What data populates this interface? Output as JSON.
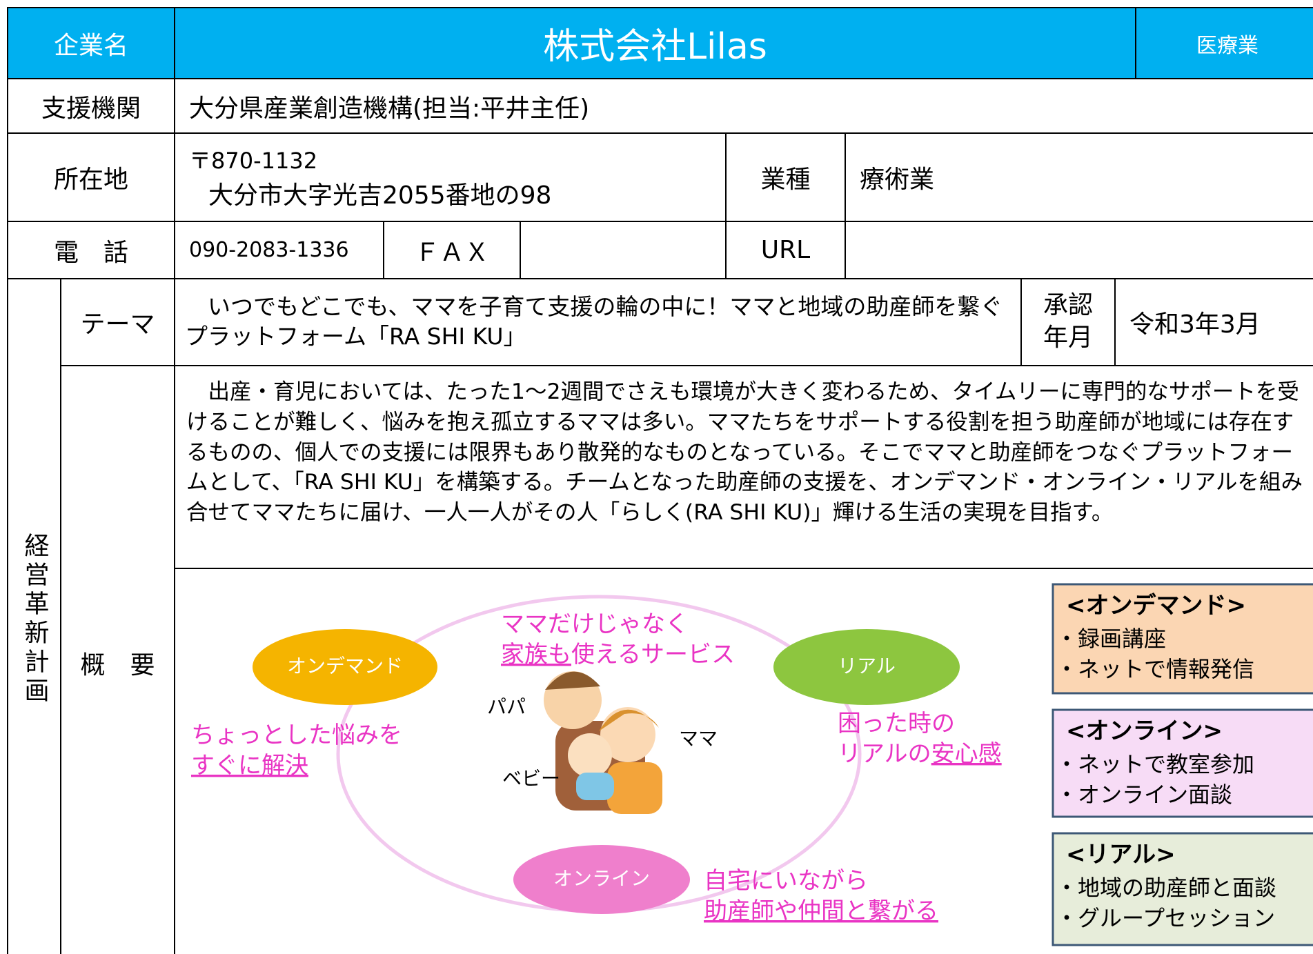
{
  "header": {
    "label": "企業名",
    "company": "株式会社Lilas",
    "industry_tag": "医療業"
  },
  "support": {
    "label": "支援機関",
    "value": "大分県産業創造機構(担当:平井主任)"
  },
  "location": {
    "label": "所在地",
    "postal": "〒870-1132",
    "address": "大分市大字光吉2055番地の98",
    "business_label": "業種",
    "business": "療術業"
  },
  "contact": {
    "phone_label": "電　話",
    "phone": "090-2083-1336",
    "fax_label": "ＦＡＸ",
    "url_label": "URL"
  },
  "plan": {
    "label": "経営革新計画",
    "theme_label": "テーマ",
    "theme": "いつでもどこでも、ママを子育て支援の輪の中に！ママと地域の助産師を繋ぐプラットフォーム「RA SHI KU」",
    "approval_label": "承認年月",
    "approval": "令和3年3月",
    "summary_label": "概　要",
    "summary": "出産・育児においては、たった1～2週間でさえも環境が大きく変わるため、タイムリーに専門的なサポートを受けることが難しく、悩みを抱え孤立するママは多い。ママたちをサポートする役割を担う助産師が地域には存在するものの、個人での支援には限界もあり散発的なものとなっている。そこでママと助産師をつなぐプラットフォームとして、「RA SHI KU」を構築する。チームとなった助産師の支援を、オンデマンド・オンライン・リアルを組み合せてママたちに届け、一人一人がその人「らしく(RA SHI KU)」輝ける生活の実現を目指す。"
  },
  "diagram": {
    "circles": {
      "on_demand": "オンデマンド",
      "real": "リアル",
      "online": "オンライン"
    },
    "family_note": [
      "ママだけじゃなく",
      [
        "家族も",
        "使えるサービス"
      ]
    ],
    "on_demand_note": [
      "ちょっとした悩みを",
      "すぐに解決"
    ],
    "real_note": [
      "困った時の",
      [
        "リアルの",
        "安心感"
      ]
    ],
    "online_note": [
      "自宅にいながら",
      "助産師や仲間と繋がる"
    ],
    "figures": {
      "papa": "パパ",
      "mama": "ママ",
      "baby": "ベビー"
    },
    "boxes": [
      {
        "title": "<オンデマンド>",
        "items": [
          "・録画講座",
          "・ネットで情報発信"
        ]
      },
      {
        "title": "<オンライン>",
        "items": [
          "・ネットで教室参加",
          "・オンライン面談"
        ]
      },
      {
        "title": "<リアル>",
        "items": [
          "・地域の助産師と面談",
          "・グループセッション"
        ]
      }
    ]
  }
}
